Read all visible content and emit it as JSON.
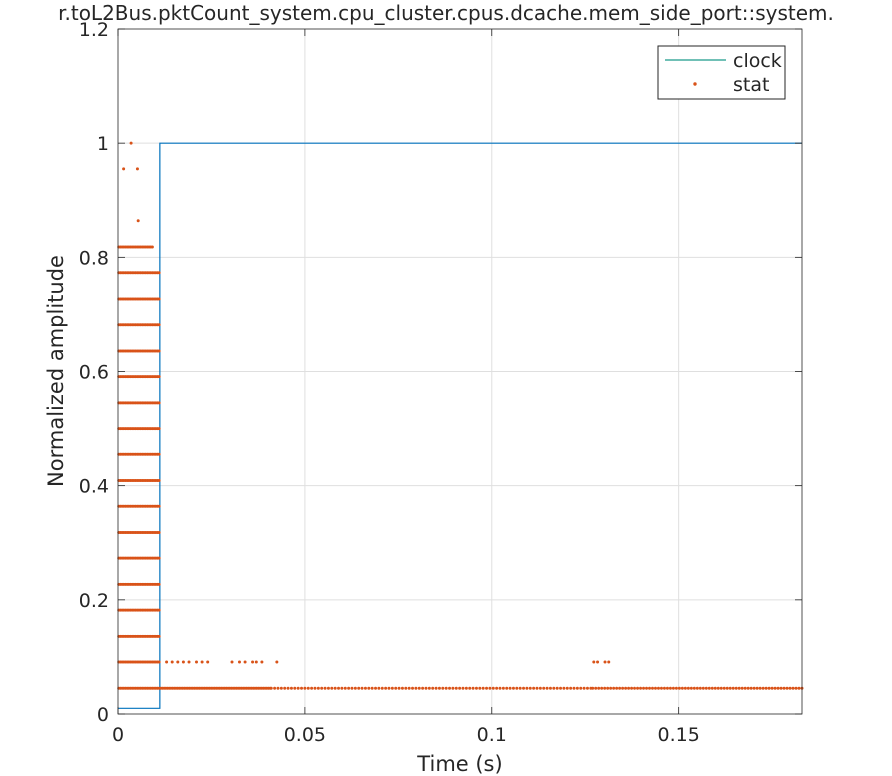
{
  "chart_data": {
    "type": "line",
    "title": "r.toL2Bus.pktCount_system.cpu_cluster.cpus.dcache.mem_side_port::system.",
    "xlabel": "Time (s)",
    "ylabel": "Normalized amplitude",
    "xlim": [
      0,
      0.183
    ],
    "ylim": [
      0,
      1.2
    ],
    "xticks": [
      0,
      0.05,
      0.1,
      0.15
    ],
    "xtick_labels": [
      "0",
      "0.05",
      "0.1",
      "0.15"
    ],
    "yticks": [
      0,
      0.2,
      0.4,
      0.6,
      0.8,
      1,
      1.2
    ],
    "ytick_labels": [
      "0",
      "0.2",
      "0.4",
      "0.6",
      "0.8",
      "1",
      "1.2"
    ],
    "grid": true,
    "legend_position": "top-right",
    "series": [
      {
        "name": "clock",
        "style": "line",
        "color": "#0072BD",
        "legend_color": "#1a9a8a",
        "points": [
          [
            0,
            0.01
          ],
          [
            0.0112,
            0.01
          ],
          [
            0.0112,
            1
          ],
          [
            0.183,
            1
          ]
        ]
      },
      {
        "name": "stat",
        "style": "markers",
        "color": "#D95319",
        "levels": [
          0.045,
          0.091,
          0.136,
          0.182,
          0.227,
          0.273,
          0.318,
          0.364,
          0.409,
          0.455,
          0.5,
          0.545,
          0.591,
          0.636,
          0.682,
          0.727,
          0.773,
          0.818
        ],
        "dense_x_range": [
          0.0002,
          0.0112
        ],
        "upper_levels_x_end": [
          0.0112,
          0.0112,
          0.0112,
          0.0112,
          0.0112,
          0.0112,
          0.0112,
          0.0112,
          0.0112,
          0.0112,
          0.0112,
          0.0112,
          0.0112,
          0.0112,
          0.0112,
          0.0112,
          0.0112,
          0.0095
        ],
        "points": [
          [
            0.0035,
            1.0
          ],
          [
            0.0015,
            0.955
          ],
          [
            0.0052,
            0.955
          ],
          [
            0.0054,
            0.864
          ],
          [
            0.013,
            0.091
          ],
          [
            0.0145,
            0.091
          ],
          [
            0.016,
            0.091
          ],
          [
            0.0175,
            0.091
          ],
          [
            0.019,
            0.091
          ],
          [
            0.021,
            0.091
          ],
          [
            0.0225,
            0.091
          ],
          [
            0.024,
            0.091
          ],
          [
            0.0305,
            0.091
          ],
          [
            0.0325,
            0.091
          ],
          [
            0.034,
            0.091
          ],
          [
            0.036,
            0.091
          ],
          [
            0.037,
            0.091
          ],
          [
            0.0385,
            0.091
          ],
          [
            0.0425,
            0.091
          ],
          [
            0.1273,
            0.091
          ],
          [
            0.1283,
            0.091
          ],
          [
            0.1303,
            0.091
          ],
          [
            0.1313,
            0.091
          ]
        ],
        "baseline": {
          "y": 0.045,
          "segments": [
            [
              0.0002,
              0.041,
              0.00045
            ],
            [
              0.041,
              0.127,
              0.0009
            ],
            [
              0.127,
              0.183,
              0.0008
            ]
          ]
        }
      }
    ]
  }
}
